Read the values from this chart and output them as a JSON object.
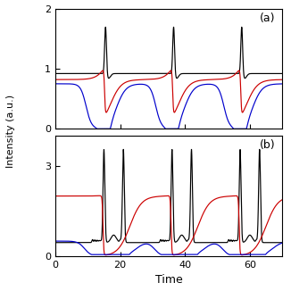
{
  "title_a": "(a)",
  "title_b": "(b)",
  "xlabel": "Time",
  "ylabel": "Intensity (a.u.)",
  "xlim": [
    0,
    70
  ],
  "ylim_a": [
    0,
    2
  ],
  "ylim_b": [
    0,
    4
  ],
  "yticks_a": [
    0,
    1,
    2
  ],
  "yticks_b": [
    0,
    3
  ],
  "xticks": [
    0,
    20,
    40,
    60
  ],
  "colors": {
    "black": "#000000",
    "red": "#cc0000",
    "blue": "#0000cc"
  },
  "figsize": [
    3.26,
    3.26
  ],
  "dpi": 100
}
